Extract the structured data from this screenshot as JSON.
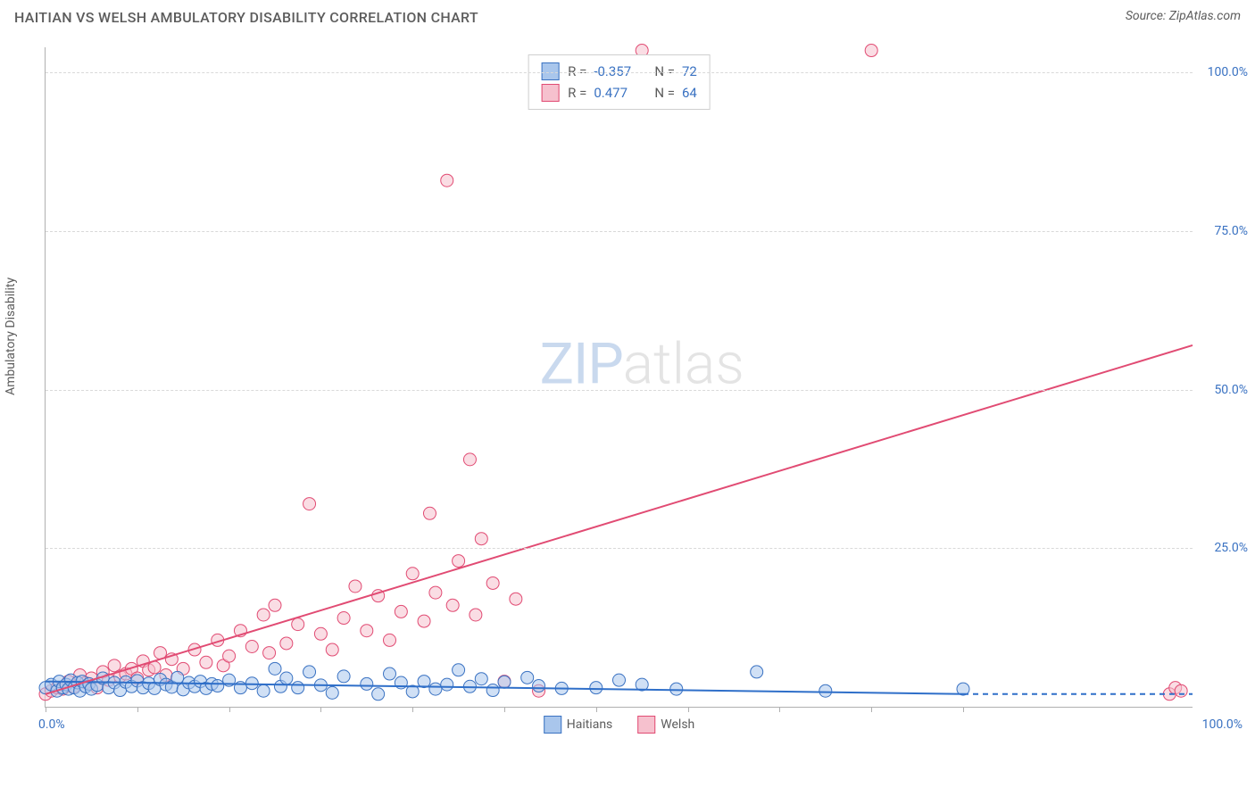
{
  "header": {
    "title": "HAITIAN VS WELSH AMBULATORY DISABILITY CORRELATION CHART",
    "source": "Source: ZipAtlas.com"
  },
  "axes": {
    "y_label": "Ambulatory Disability",
    "xlim": [
      0,
      100
    ],
    "ylim": [
      0,
      104
    ],
    "y_ticks": [
      25,
      50,
      75,
      100
    ],
    "y_tick_labels": [
      "25.0%",
      "50.0%",
      "75.0%",
      "100.0%"
    ],
    "x_ticks": [
      0,
      8,
      16,
      24,
      32,
      40,
      48,
      56,
      64,
      72,
      80
    ],
    "x_label_0": "0.0%",
    "x_label_100": "100.0%",
    "label_color": "#3a72c2",
    "grid_color": "#d9d9d9",
    "axis_color": "#b0b0b0"
  },
  "series": {
    "haitians": {
      "name": "Haitians",
      "fill": "#a9c6ec",
      "stroke": "#3a72c2",
      "line_color": "#2f6fc9",
      "R": "-0.357",
      "N": "72",
      "regression": {
        "x1": 0,
        "y1": 4.0,
        "x2": 80,
        "y2": 2.0,
        "dash_from_x": 80,
        "dash_to_x": 100,
        "dash_y": 2.0
      },
      "points": [
        [
          0,
          3
        ],
        [
          0.5,
          3.5
        ],
        [
          1,
          2.5
        ],
        [
          1.2,
          4
        ],
        [
          1.5,
          3
        ],
        [
          1.8,
          3.5
        ],
        [
          2,
          2.8
        ],
        [
          2.2,
          4.2
        ],
        [
          2.5,
          3
        ],
        [
          2.8,
          3.8
        ],
        [
          3,
          2.5
        ],
        [
          3.2,
          4
        ],
        [
          3.5,
          3.2
        ],
        [
          3.8,
          3.6
        ],
        [
          4,
          2.8
        ],
        [
          4.5,
          3.4
        ],
        [
          5,
          4.5
        ],
        [
          5.5,
          3
        ],
        [
          6,
          3.8
        ],
        [
          6.5,
          2.6
        ],
        [
          7,
          3.9
        ],
        [
          7.5,
          3.2
        ],
        [
          8,
          4.1
        ],
        [
          8.5,
          3
        ],
        [
          9,
          3.7
        ],
        [
          9.5,
          2.9
        ],
        [
          10,
          4.3
        ],
        [
          10.5,
          3.5
        ],
        [
          11,
          3.1
        ],
        [
          11.5,
          4.6
        ],
        [
          12,
          2.7
        ],
        [
          12.5,
          3.8
        ],
        [
          13,
          3.2
        ],
        [
          13.5,
          4.0
        ],
        [
          14,
          2.9
        ],
        [
          14.5,
          3.6
        ],
        [
          15,
          3.3
        ],
        [
          16,
          4.2
        ],
        [
          17,
          3.0
        ],
        [
          18,
          3.7
        ],
        [
          19,
          2.5
        ],
        [
          20,
          6.0
        ],
        [
          20.5,
          3.2
        ],
        [
          21,
          4.5
        ],
        [
          22,
          3.0
        ],
        [
          23,
          5.5
        ],
        [
          24,
          3.4
        ],
        [
          25,
          2.2
        ],
        [
          26,
          4.8
        ],
        [
          28,
          3.6
        ],
        [
          29,
          2.0
        ],
        [
          30,
          5.2
        ],
        [
          31,
          3.8
        ],
        [
          32,
          2.4
        ],
        [
          33,
          4.0
        ],
        [
          34,
          2.8
        ],
        [
          35,
          3.5
        ],
        [
          36,
          5.8
        ],
        [
          37,
          3.2
        ],
        [
          38,
          4.4
        ],
        [
          39,
          2.6
        ],
        [
          40,
          3.9
        ],
        [
          42,
          4.6
        ],
        [
          43,
          3.3
        ],
        [
          45,
          2.9
        ],
        [
          48,
          3.0
        ],
        [
          50,
          4.2
        ],
        [
          52,
          3.5
        ],
        [
          55,
          2.8
        ],
        [
          62,
          5.5
        ],
        [
          68,
          2.5
        ],
        [
          80,
          2.8
        ]
      ]
    },
    "welsh": {
      "name": "Welsh",
      "fill": "#f6c1ce",
      "stroke": "#e14b73",
      "line_color": "#e14b73",
      "R": "0.477",
      "N": "64",
      "regression": {
        "x1": 0,
        "y1": 2.0,
        "x2": 100,
        "y2": 57.0
      },
      "points": [
        [
          0,
          2
        ],
        [
          0.5,
          2.5
        ],
        [
          1,
          3
        ],
        [
          1.5,
          2.8
        ],
        [
          2,
          4
        ],
        [
          2.5,
          3.2
        ],
        [
          3,
          5
        ],
        [
          3.5,
          3.8
        ],
        [
          4,
          4.5
        ],
        [
          4.5,
          3
        ],
        [
          5,
          5.5
        ],
        [
          5.5,
          4.2
        ],
        [
          6,
          6.5
        ],
        [
          6.5,
          4.8
        ],
        [
          7,
          5.2
        ],
        [
          7.5,
          6.0
        ],
        [
          8,
          4.5
        ],
        [
          8.5,
          7.2
        ],
        [
          9,
          5.8
        ],
        [
          9.5,
          6.2
        ],
        [
          10,
          8.5
        ],
        [
          10.5,
          5.0
        ],
        [
          11,
          7.5
        ],
        [
          12,
          6.0
        ],
        [
          13,
          9.0
        ],
        [
          14,
          7.0
        ],
        [
          15,
          10.5
        ],
        [
          15.5,
          6.5
        ],
        [
          16,
          8.0
        ],
        [
          17,
          12.0
        ],
        [
          18,
          9.5
        ],
        [
          19,
          14.5
        ],
        [
          19.5,
          8.5
        ],
        [
          20,
          16.0
        ],
        [
          21,
          10.0
        ],
        [
          22,
          13.0
        ],
        [
          23,
          32.0
        ],
        [
          24,
          11.5
        ],
        [
          25,
          9.0
        ],
        [
          26,
          14.0
        ],
        [
          27,
          19.0
        ],
        [
          28,
          12.0
        ],
        [
          29,
          17.5
        ],
        [
          30,
          10.5
        ],
        [
          31,
          15.0
        ],
        [
          32,
          21.0
        ],
        [
          33,
          13.5
        ],
        [
          33.5,
          30.5
        ],
        [
          34,
          18.0
        ],
        [
          35,
          83.0
        ],
        [
          35.5,
          16.0
        ],
        [
          36,
          23.0
        ],
        [
          37,
          39.0
        ],
        [
          37.5,
          14.5
        ],
        [
          38,
          26.5
        ],
        [
          39,
          19.5
        ],
        [
          40,
          4.0
        ],
        [
          41,
          17.0
        ],
        [
          43,
          2.5
        ],
        [
          52,
          103.5
        ],
        [
          72,
          103.5
        ],
        [
          98,
          2.0
        ],
        [
          98.5,
          3.0
        ],
        [
          99,
          2.5
        ]
      ]
    }
  },
  "legend": {
    "bottom": [
      {
        "key": "haitians",
        "label": "Haitians"
      },
      {
        "key": "welsh",
        "label": "Welsh"
      }
    ]
  },
  "watermark": {
    "zip": "ZIP",
    "atlas": "atlas"
  },
  "marker": {
    "radius": 7,
    "opacity": 0.55,
    "stroke_width": 1
  },
  "background_color": "#ffffff"
}
